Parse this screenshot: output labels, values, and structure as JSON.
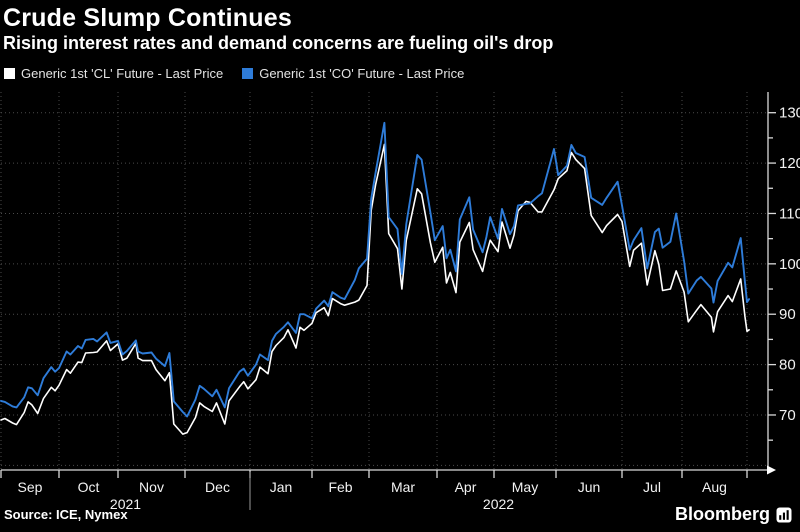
{
  "footer": {
    "source": "Source: ICE, Nymex",
    "brand": "Bloomberg"
  },
  "chart_data": {
    "type": "line",
    "title": "Crude Slump Continues",
    "subtitle": "Rising interest rates and demand concerns are fueling oil's drop",
    "legend_position": "top",
    "grid": true,
    "background_color": "#000000",
    "ylim": [
      59,
      134.5
    ],
    "y_axis": {
      "side": "right",
      "tick_labels": [
        70,
        80,
        90,
        100,
        110,
        120,
        130
      ],
      "minor_tick_step": 5,
      "gridline_values": [
        60,
        70,
        80,
        90,
        100,
        110,
        120,
        130
      ]
    },
    "x_axis": {
      "month_labels": [
        "Sep",
        "Oct",
        "Nov",
        "Dec",
        "Jan",
        "Feb",
        "Mar",
        "Apr",
        "May",
        "Jun",
        "Jul",
        "Aug"
      ],
      "year_labels": [
        "2021",
        "2022"
      ]
    },
    "x": [
      "2021-09-01",
      "2021-09-03",
      "2021-09-07",
      "2021-09-09",
      "2021-09-13",
      "2021-09-15",
      "2021-09-17",
      "2021-09-20",
      "2021-09-23",
      "2021-09-27",
      "2021-09-29",
      "2021-10-01",
      "2021-10-05",
      "2021-10-07",
      "2021-10-11",
      "2021-10-13",
      "2021-10-15",
      "2021-10-19",
      "2021-10-21",
      "2021-10-26",
      "2021-10-28",
      "2021-11-01",
      "2021-11-03",
      "2021-11-05",
      "2021-11-09",
      "2021-11-10",
      "2021-11-12",
      "2021-11-16",
      "2021-11-18",
      "2021-11-22",
      "2021-11-24",
      "2021-11-26",
      "2021-11-30",
      "2021-12-02",
      "2021-12-06",
      "2021-12-08",
      "2021-12-10",
      "2021-12-14",
      "2021-12-16",
      "2021-12-20",
      "2021-12-22",
      "2021-12-27",
      "2021-12-29",
      "2021-12-31",
      "2022-01-04",
      "2022-01-06",
      "2022-01-10",
      "2022-01-12",
      "2022-01-14",
      "2022-01-18",
      "2022-01-20",
      "2022-01-24",
      "2022-01-26",
      "2022-01-28",
      "2022-02-01",
      "2022-02-03",
      "2022-02-07",
      "2022-02-09",
      "2022-02-11",
      "2022-02-15",
      "2022-02-17",
      "2022-02-22",
      "2022-02-24",
      "2022-02-28",
      "2022-03-02",
      "2022-03-04",
      "2022-03-08",
      "2022-03-10",
      "2022-03-14",
      "2022-03-16",
      "2022-03-18",
      "2022-03-23",
      "2022-03-25",
      "2022-03-29",
      "2022-03-31",
      "2022-04-04",
      "2022-04-06",
      "2022-04-08",
      "2022-04-11",
      "2022-04-13",
      "2022-04-18",
      "2022-04-20",
      "2022-04-25",
      "2022-04-27",
      "2022-04-29",
      "2022-05-03",
      "2022-05-05",
      "2022-05-09",
      "2022-05-11",
      "2022-05-13",
      "2022-05-17",
      "2022-05-19",
      "2022-05-23",
      "2022-05-25",
      "2022-05-31",
      "2022-06-02",
      "2022-06-06",
      "2022-06-08",
      "2022-06-10",
      "2022-06-14",
      "2022-06-17",
      "2022-06-22",
      "2022-06-24",
      "2022-06-29",
      "2022-07-01",
      "2022-07-05",
      "2022-07-07",
      "2022-07-11",
      "2022-07-14",
      "2022-07-18",
      "2022-07-20",
      "2022-07-22",
      "2022-07-26",
      "2022-07-29",
      "2022-08-02",
      "2022-08-04",
      "2022-08-08",
      "2022-08-10",
      "2022-08-15",
      "2022-08-16",
      "2022-08-18",
      "2022-08-23",
      "2022-08-25",
      "2022-08-29",
      "2022-08-31",
      "2022-09-01",
      "2022-09-02"
    ],
    "series": [
      {
        "name": "Generic 1st 'CL' Future - Last Price",
        "color": "#ffffff",
        "values": [
          69.0,
          69.3,
          68.4,
          68.1,
          70.5,
          72.6,
          72.0,
          70.3,
          73.3,
          75.5,
          74.8,
          75.9,
          79.0,
          78.3,
          80.5,
          80.4,
          82.3,
          82.4,
          82.5,
          84.7,
          82.8,
          84.1,
          80.9,
          81.3,
          84.2,
          81.3,
          80.8,
          80.8,
          79.0,
          76.8,
          78.4,
          68.2,
          66.2,
          66.5,
          69.5,
          72.4,
          71.7,
          70.7,
          72.4,
          68.2,
          72.8,
          75.6,
          76.6,
          75.2,
          77.0,
          79.5,
          78.2,
          82.6,
          83.8,
          85.4,
          86.9,
          83.3,
          87.4,
          86.8,
          88.2,
          90.3,
          91.3,
          89.7,
          93.1,
          92.1,
          91.8,
          92.4,
          92.8,
          95.7,
          110.6,
          115.7,
          123.7,
          106.0,
          103.0,
          95.0,
          104.7,
          114.9,
          113.9,
          104.2,
          100.3,
          103.3,
          96.2,
          98.3,
          94.3,
          104.3,
          108.2,
          102.8,
          98.5,
          102.0,
          104.7,
          102.4,
          108.3,
          103.1,
          105.7,
          110.5,
          112.4,
          112.2,
          110.3,
          110.3,
          114.7,
          116.9,
          118.5,
          122.1,
          120.7,
          118.9,
          109.6,
          106.2,
          107.6,
          109.8,
          108.4,
          99.5,
          102.7,
          104.1,
          95.8,
          102.6,
          99.9,
          94.7,
          95.0,
          98.6,
          94.4,
          88.5,
          90.8,
          91.9,
          89.4,
          86.5,
          90.5,
          93.7,
          92.5,
          97.0,
          89.6,
          86.6,
          86.9
        ]
      },
      {
        "name": "Generic 1st 'CO' Future - Last Price",
        "color": "#2e7cd9",
        "values": [
          72.8,
          72.6,
          71.7,
          71.5,
          73.5,
          75.5,
          75.3,
          73.9,
          77.3,
          79.5,
          78.6,
          79.3,
          82.6,
          82.0,
          83.7,
          83.2,
          84.9,
          85.1,
          84.6,
          86.4,
          84.3,
          84.7,
          82.0,
          82.7,
          84.8,
          82.6,
          82.2,
          82.4,
          81.2,
          79.7,
          82.3,
          72.7,
          70.6,
          69.7,
          73.1,
          75.8,
          75.2,
          73.7,
          75.0,
          71.5,
          75.3,
          78.6,
          79.2,
          77.8,
          80.0,
          82.0,
          80.9,
          84.7,
          86.1,
          87.5,
          88.4,
          86.3,
          90.0,
          90.0,
          89.2,
          91.1,
          92.7,
          91.6,
          94.4,
          93.3,
          93.0,
          96.8,
          99.1,
          101.0,
          112.9,
          118.1,
          128.0,
          109.3,
          106.9,
          98.0,
          107.9,
          121.6,
          120.7,
          110.2,
          104.7,
          107.5,
          101.1,
          102.8,
          98.5,
          108.8,
          113.2,
          106.8,
          102.3,
          105.3,
          109.3,
          105.0,
          110.9,
          105.9,
          107.5,
          111.6,
          111.9,
          112.0,
          113.4,
          114.0,
          122.8,
          117.6,
          119.5,
          123.6,
          122.0,
          121.2,
          113.1,
          111.7,
          113.1,
          116.3,
          111.6,
          102.8,
          104.7,
          107.1,
          99.1,
          106.3,
          107.0,
          103.2,
          104.4,
          110.0,
          100.5,
          94.1,
          96.7,
          97.4,
          95.1,
          92.3,
          96.6,
          100.2,
          99.3,
          105.1,
          96.5,
          92.4,
          93.0
        ]
      }
    ]
  }
}
